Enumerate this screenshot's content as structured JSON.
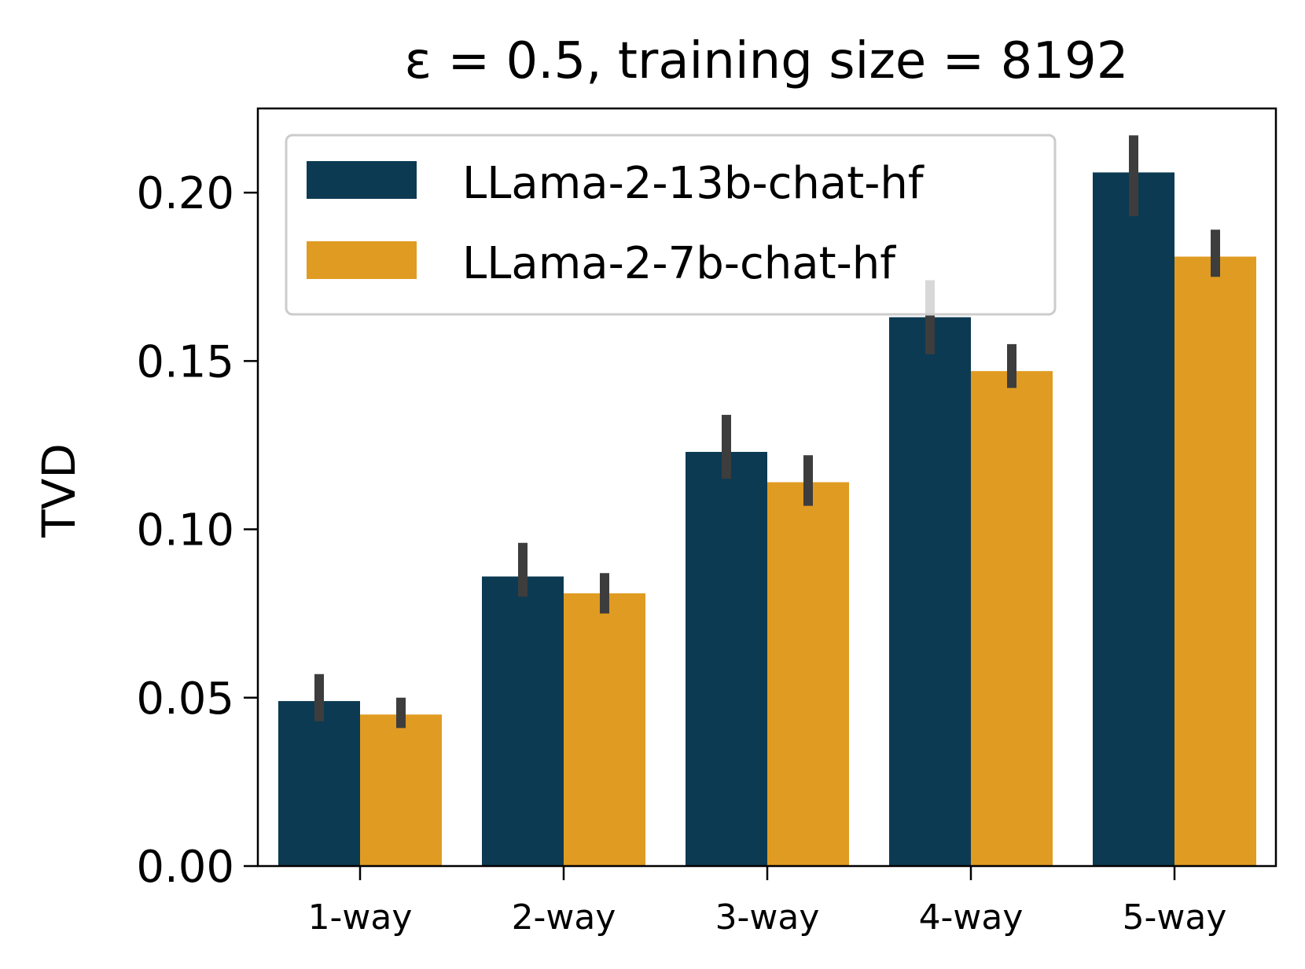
{
  "chart_data": {
    "type": "bar",
    "title": "ε = 0.5, training size = 8192",
    "xlabel": "",
    "ylabel": "TVD",
    "categories": [
      "1-way",
      "2-way",
      "3-way",
      "4-way",
      "5-way"
    ],
    "ylim": [
      0,
      0.225
    ],
    "yticks": [
      0.0,
      0.05,
      0.1,
      0.15,
      0.2
    ],
    "ytick_labels": [
      "0.00",
      "0.05",
      "0.10",
      "0.15",
      "0.20"
    ],
    "legend_position": "upper-left",
    "series": [
      {
        "name": "LLama-2-13b-chat-hf",
        "color": "#0c3a52",
        "values": [
          0.049,
          0.086,
          0.123,
          0.163,
          0.206
        ],
        "error_low": [
          0.043,
          0.08,
          0.115,
          0.152,
          0.193
        ],
        "error_high": [
          0.057,
          0.096,
          0.134,
          0.174,
          0.217
        ]
      },
      {
        "name": "LLama-2-7b-chat-hf",
        "color": "#e09b22",
        "values": [
          0.045,
          0.081,
          0.114,
          0.147,
          0.181
        ],
        "error_low": [
          0.041,
          0.075,
          0.107,
          0.142,
          0.175
        ],
        "error_high": [
          0.05,
          0.087,
          0.122,
          0.155,
          0.189
        ]
      }
    ],
    "errorbar_color": "#3d3d3d"
  }
}
